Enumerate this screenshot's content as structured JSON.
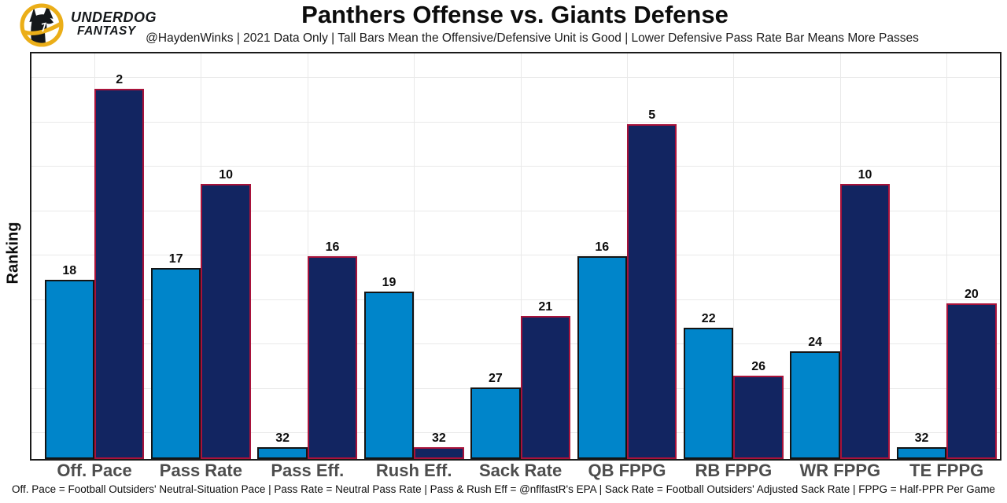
{
  "logo": {
    "line1": "UNDERDOG",
    "line2": "FANTASY"
  },
  "title": "Panthers Offense vs. Giants Defense",
  "subtitle": "@HaydenWinks | 2021 Data Only | Tall Bars Mean the Offensive/Defensive Unit is Good | Lower Defensive Pass Rate Bar Means More Passes",
  "ylabel": "Ranking",
  "footer": "Off. Pace = Football Outsiders' Neutral-Situation Pace | Pass Rate = Neutral Pass Rate | Pass & Rush Eff = @nflfastR's EPA | Sack Rate = Football Outsiders' Adjusted Sack Rate | FPPG = Half-PPR Per Game",
  "colors": {
    "offense_fill": "#0085CA",
    "offense_border": "#141414",
    "defense_fill": "#122561",
    "defense_border": "#a8123a",
    "gridline": "#e9e9e9",
    "tick_label": "#4d4d4d",
    "logo_gold": "#EBAE18"
  },
  "chart_data": {
    "type": "bar",
    "title": "Panthers Offense vs. Giants Defense",
    "xlabel": "",
    "ylabel": "Ranking",
    "categories": [
      "Off. Pace",
      "Pass Rate",
      "Pass Eff.",
      "Rush Eff.",
      "Sack Rate",
      "QB FPPG",
      "RB FPPG",
      "WR FPPG",
      "TE FPPG"
    ],
    "series": [
      {
        "name": "Panthers Offense",
        "color": "#0085CA",
        "values": [
          18,
          17,
          32,
          19,
          27,
          16,
          22,
          24,
          32
        ]
      },
      {
        "name": "Giants Defense",
        "color": "#122561",
        "values": [
          2,
          10,
          16,
          32,
          21,
          5,
          26,
          10,
          20
        ]
      }
    ],
    "value_encoding": "values are NFL ranks (1=best of 32); bar height is proportional to (33 - rank)",
    "ylim": [
      0,
      34
    ],
    "grid": true,
    "legend": "none"
  }
}
